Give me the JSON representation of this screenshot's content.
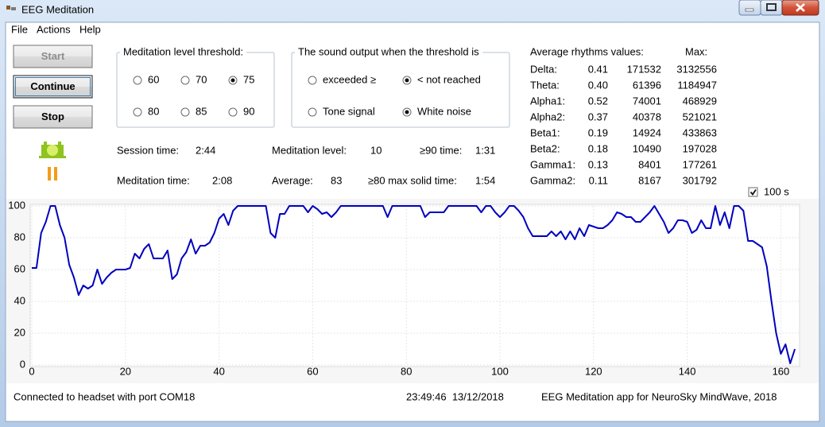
{
  "window": {
    "title": "EEG Meditation"
  },
  "menu": [
    "File",
    "Actions",
    "Help"
  ],
  "buttons": [
    {
      "label": "Start",
      "enabled": false
    },
    {
      "label": "Continue",
      "enabled": true
    },
    {
      "label": "Stop",
      "enabled": true
    }
  ],
  "threshold": {
    "title": "Meditation level threshold:",
    "options": [
      {
        "label": "60",
        "checked": false
      },
      {
        "label": "70",
        "checked": false
      },
      {
        "label": "75",
        "checked": true
      },
      {
        "label": "80",
        "checked": false
      },
      {
        "label": "85",
        "checked": false
      },
      {
        "label": "90",
        "checked": false
      }
    ]
  },
  "sound": {
    "title": "The sound output when the threshold is",
    "options": [
      {
        "label": "exceeded ≥",
        "checked": false
      },
      {
        "label": "< not reached",
        "checked": true
      },
      {
        "label": "Tone signal",
        "checked": false
      },
      {
        "label": "White noise",
        "checked": true
      }
    ]
  },
  "stats": [
    {
      "label": "Session time:",
      "value": "2:44"
    },
    {
      "label": "Meditation level:",
      "value": "10"
    },
    {
      "label": "≥90 time:",
      "value": "1:31"
    },
    {
      "label": "Meditation time:",
      "value": "2:08"
    },
    {
      "label": "Average:",
      "value": "83"
    },
    {
      "label": "≥80 max solid time:",
      "value": "1:54"
    }
  ],
  "rhythms": {
    "title": "Average rhythms values:",
    "max_title": "Max:",
    "rows": [
      {
        "name": "Delta:",
        "ratio": "0.41",
        "value": "171532",
        "max": "3132556"
      },
      {
        "name": "Theta:",
        "ratio": "0.40",
        "value": "61396",
        "max": "1184947"
      },
      {
        "name": "Alpha1:",
        "ratio": "0.52",
        "value": "74001",
        "max": "468929"
      },
      {
        "name": "Alpha2:",
        "ratio": "0.37",
        "value": "40378",
        "max": "521021"
      },
      {
        "name": "Beta1:",
        "ratio": "0.19",
        "value": "14924",
        "max": "433863"
      },
      {
        "name": "Beta2:",
        "ratio": "0.18",
        "value": "10490",
        "max": "197028"
      },
      {
        "name": "Gamma1:",
        "ratio": "0.13",
        "value": "8401",
        "max": "177261"
      },
      {
        "name": "Gamma2:",
        "ratio": "0.11",
        "value": "8167",
        "max": "301792"
      }
    ]
  },
  "window_checkbox": {
    "label": "100 s",
    "checked": true
  },
  "status": {
    "connection": "Connected to headset with port COM18",
    "datetime": "23:49:46  13/12/2018",
    "about": "EEG Meditation app for NeuroSky MindWave, 2018"
  },
  "chart_data": {
    "type": "line",
    "x": [
      0,
      1,
      2,
      3,
      4,
      5,
      6,
      7,
      8,
      9,
      10,
      11,
      12,
      13,
      14,
      15,
      16,
      17,
      18,
      19,
      20,
      21,
      22,
      23,
      24,
      25,
      26,
      27,
      28,
      29,
      30,
      31,
      32,
      33,
      34,
      35,
      36,
      37,
      38,
      39,
      40,
      41,
      42,
      43,
      44,
      45,
      46,
      47,
      48,
      49,
      50,
      51,
      52,
      53,
      54,
      55,
      56,
      57,
      58,
      59,
      60,
      61,
      62,
      63,
      64,
      65,
      66,
      67,
      68,
      69,
      70,
      71,
      72,
      73,
      74,
      75,
      76,
      77,
      78,
      79,
      80,
      81,
      82,
      83,
      84,
      85,
      86,
      87,
      88,
      89,
      90,
      91,
      92,
      93,
      94,
      95,
      96,
      97,
      98,
      99,
      100,
      101,
      102,
      103,
      104,
      105,
      106,
      107,
      108,
      109,
      110,
      111,
      112,
      113,
      114,
      115,
      116,
      117,
      118,
      119,
      120,
      121,
      122,
      123,
      124,
      125,
      126,
      127,
      128,
      129,
      130,
      131,
      132,
      133,
      134,
      135,
      136,
      137,
      138,
      139,
      140,
      141,
      142,
      143,
      144,
      145,
      146,
      147,
      148,
      149,
      150,
      151,
      152,
      153,
      154,
      155,
      156,
      157,
      158,
      159,
      160,
      161,
      162,
      163
    ],
    "series": [
      {
        "color": "#0000c0",
        "values": [
          61,
          61,
          83,
          90,
          100,
          100,
          88,
          80,
          63,
          55,
          44,
          50,
          48,
          50,
          60,
          51,
          55,
          58,
          60,
          60,
          60,
          61,
          70,
          67,
          73,
          76,
          67,
          67,
          67,
          72,
          54,
          57,
          67,
          71,
          79,
          70,
          75,
          75,
          77,
          83,
          92,
          95,
          88,
          97,
          100,
          100,
          100,
          100,
          100,
          100,
          100,
          83,
          80,
          95,
          95,
          100,
          100,
          100,
          100,
          96,
          100,
          98,
          95,
          96,
          93,
          96,
          100,
          100,
          100,
          100,
          100,
          100,
          100,
          100,
          100,
          100,
          93,
          100,
          100,
          100,
          100,
          100,
          100,
          100,
          93,
          96,
          96,
          96,
          96,
          100,
          100,
          100,
          100,
          100,
          100,
          100,
          96,
          100,
          100,
          96,
          93,
          96,
          100,
          100,
          97,
          93,
          86,
          81,
          81,
          81,
          81,
          84,
          81,
          84,
          79,
          84,
          79,
          86,
          81,
          88,
          87,
          86,
          86,
          88,
          91,
          96,
          95,
          93,
          93,
          90,
          90,
          93,
          96,
          100,
          95,
          90,
          83,
          86,
          91,
          91,
          90,
          83,
          85,
          91,
          86,
          86,
          100,
          88,
          96,
          86,
          100,
          100,
          97,
          78,
          78,
          76,
          74,
          62,
          40,
          20,
          7,
          13,
          1,
          10
        ]
      }
    ],
    "xlim": [
      0,
      164
    ],
    "ylim": [
      0,
      100
    ],
    "xticks": [
      0,
      20,
      40,
      60,
      80,
      100,
      120,
      140,
      160
    ],
    "yticks": [
      0,
      20,
      40,
      60,
      80,
      100
    ],
    "grid": true
  }
}
